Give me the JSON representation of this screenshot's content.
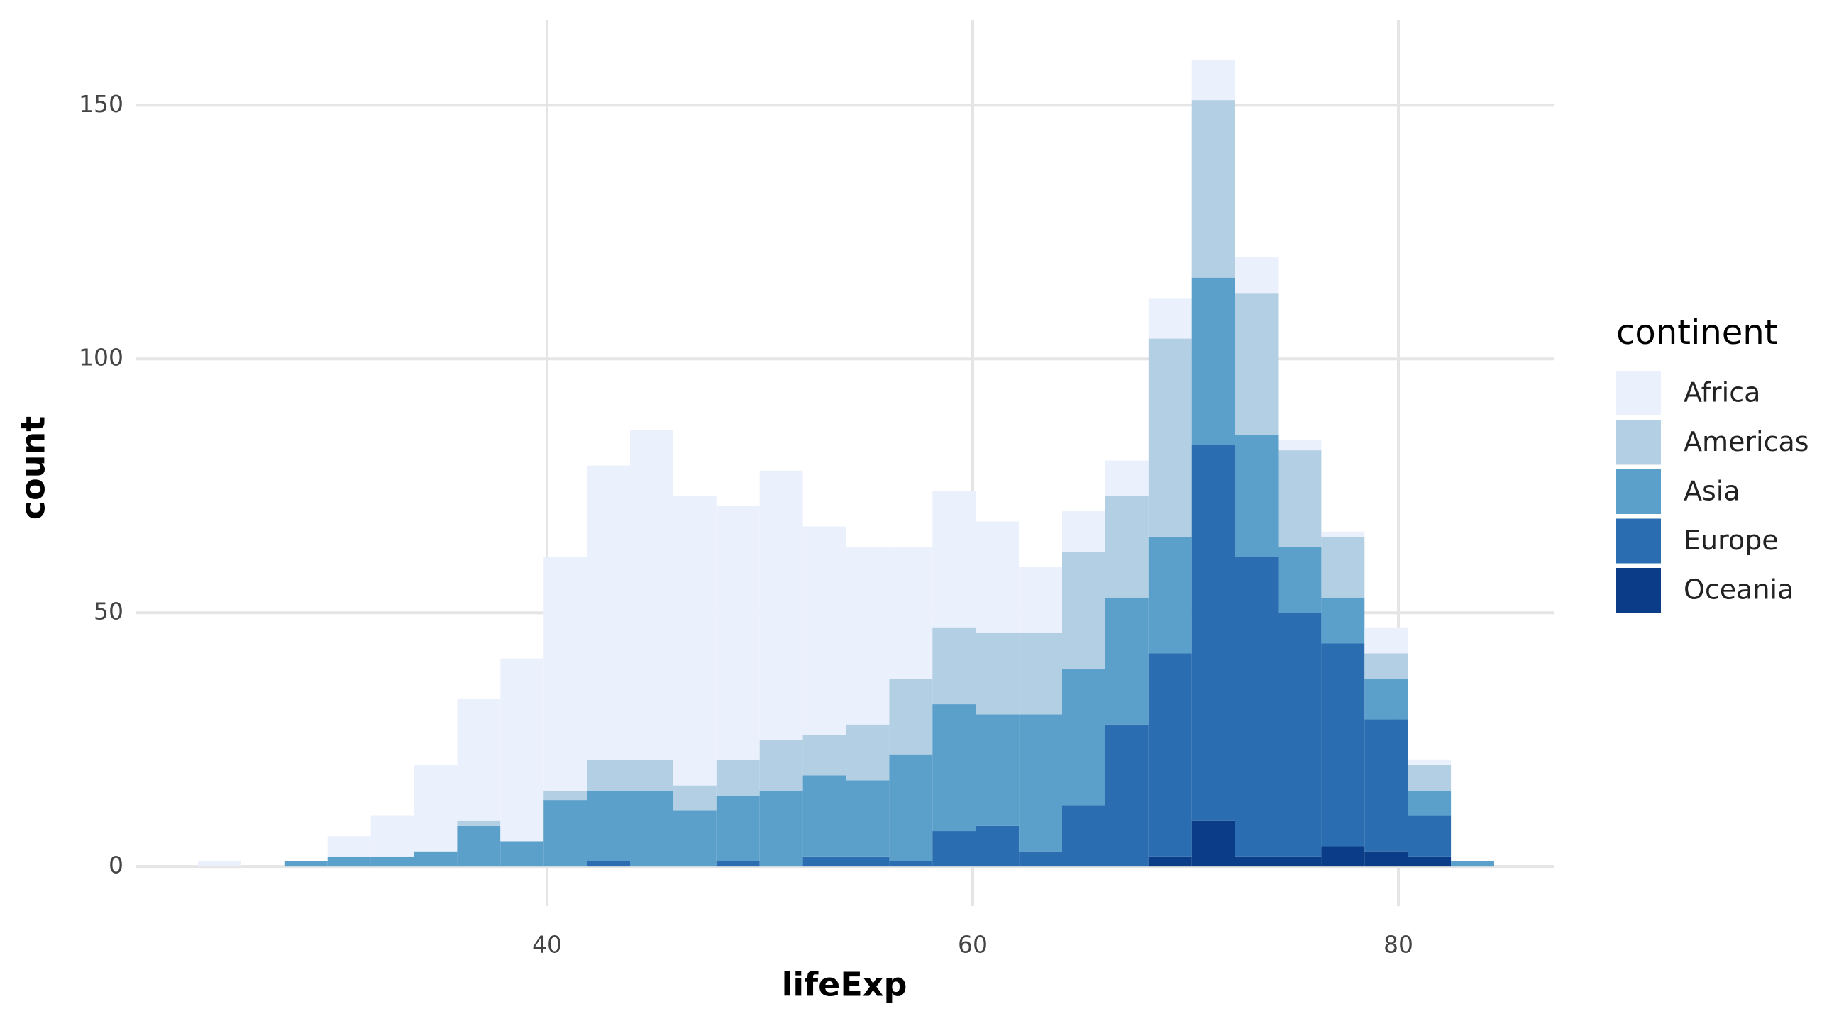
{
  "chart_data": {
    "type": "histogram",
    "x_label": "lifeExp",
    "y_label": "count",
    "legend_title": "continent",
    "bins": [
      23.6,
      25.63,
      27.66,
      29.69,
      31.72,
      33.75,
      35.78,
      37.81,
      39.84,
      41.87,
      43.9,
      45.93,
      47.96,
      49.99,
      52.02,
      54.05,
      56.08,
      58.11,
      60.14,
      62.17,
      64.2,
      66.23,
      68.26,
      70.29,
      72.32,
      74.35,
      76.38,
      78.41,
      80.44,
      82.47,
      84.5
    ],
    "series": [
      {
        "name": "Africa",
        "color": "#ebf1fc",
        "values": [
          1,
          0,
          0,
          4,
          8,
          17,
          24,
          36,
          46,
          58,
          65,
          57,
          50,
          53,
          41,
          35,
          26,
          27,
          22,
          13,
          8,
          7,
          8,
          8,
          7,
          2,
          1,
          5,
          1,
          0
        ]
      },
      {
        "name": "Americas",
        "color": "#b3cfe3",
        "values": [
          0,
          0,
          0,
          0,
          0,
          0,
          1,
          0,
          2,
          6,
          6,
          5,
          7,
          10,
          8,
          11,
          15,
          15,
          16,
          16,
          23,
          20,
          39,
          35,
          28,
          19,
          12,
          5,
          5,
          0
        ]
      },
      {
        "name": "Asia",
        "color": "#5b9fcb",
        "values": [
          0,
          0,
          1,
          2,
          2,
          3,
          8,
          5,
          13,
          14,
          15,
          11,
          13,
          15,
          16,
          15,
          21,
          25,
          22,
          27,
          27,
          25,
          23,
          33,
          24,
          13,
          9,
          8,
          5,
          1
        ]
      },
      {
        "name": "Europe",
        "color": "#2a6db0",
        "values": [
          0,
          0,
          0,
          0,
          0,
          0,
          0,
          0,
          0,
          1,
          0,
          0,
          1,
          0,
          2,
          2,
          1,
          7,
          8,
          3,
          12,
          28,
          40,
          74,
          59,
          48,
          40,
          26,
          8,
          0
        ]
      },
      {
        "name": "Oceania",
        "color": "#0b3c87",
        "values": [
          0,
          0,
          0,
          0,
          0,
          0,
          0,
          0,
          0,
          0,
          0,
          0,
          0,
          0,
          0,
          0,
          0,
          0,
          0,
          0,
          0,
          0,
          2,
          9,
          2,
          2,
          4,
          3,
          2,
          0
        ]
      }
    ],
    "xlim": [
      20.7,
      87.3
    ],
    "ylim": [
      -7.8,
      166.8
    ],
    "xticks": [
      40,
      60,
      80
    ],
    "yticks": [
      0,
      50,
      100,
      150
    ],
    "grid": true,
    "legend_position": "right"
  }
}
